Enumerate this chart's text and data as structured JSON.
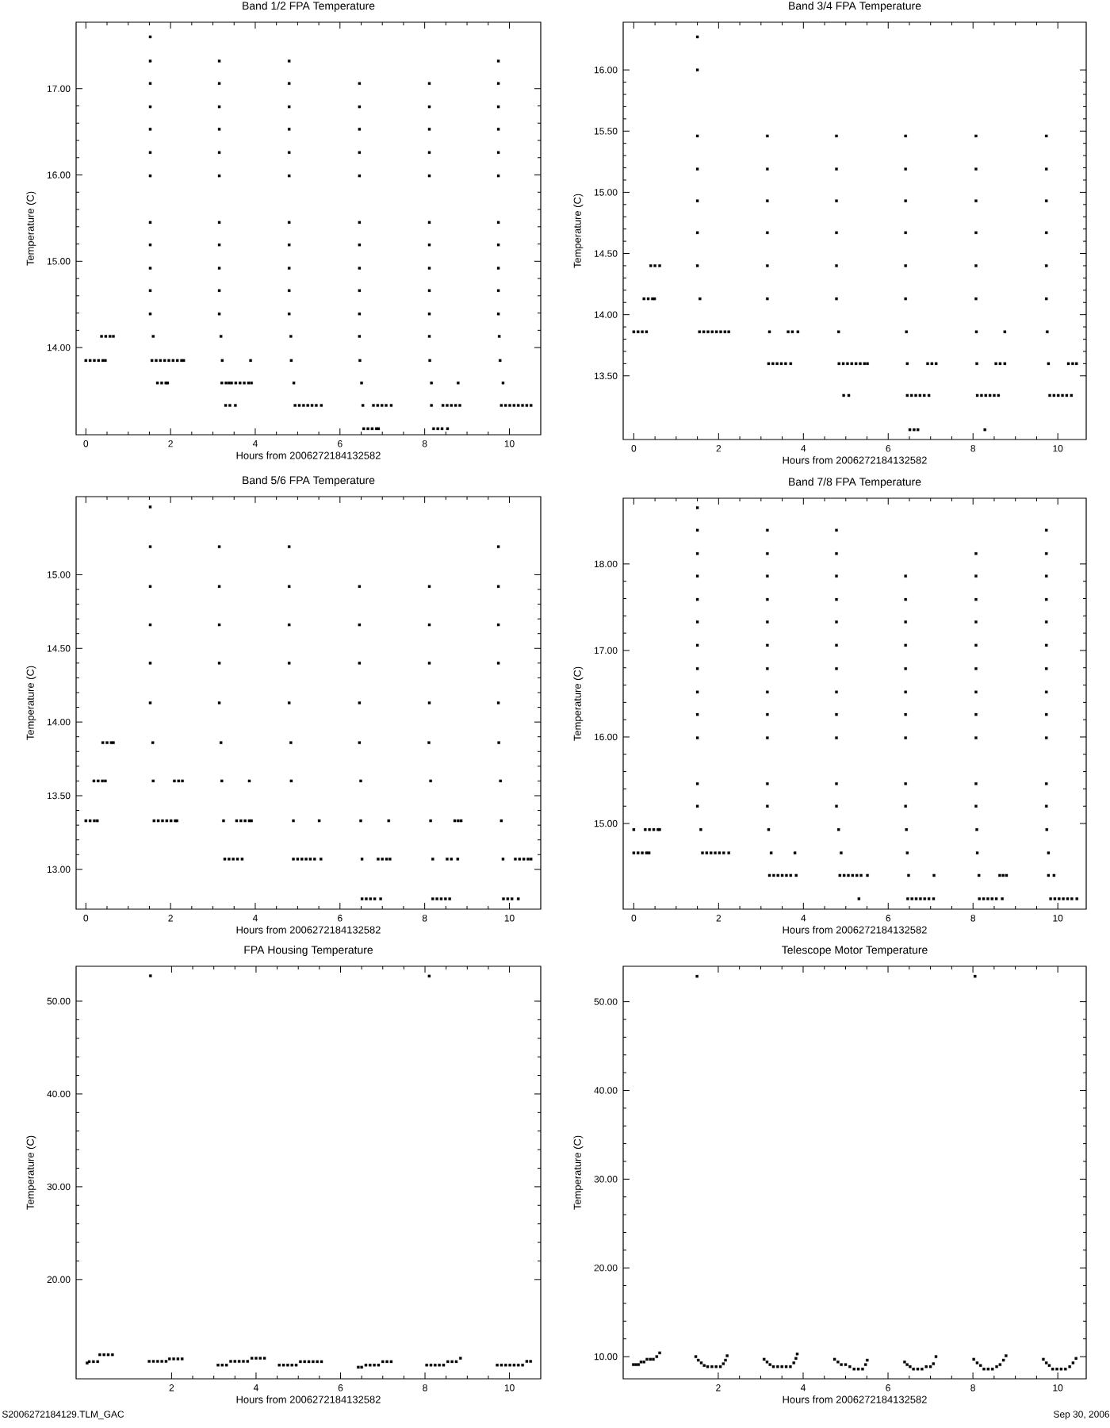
{
  "chart_data": [
    {
      "type": "scatter",
      "title": "Band 1/2 FPA Temperature",
      "xlabel": "Hours from 2006272184132582",
      "ylabel": "Temperature (C)",
      "marker": "square",
      "xlim": [
        -0.23,
        10.74
      ],
      "ylim": [
        12.99,
        17.77
      ],
      "xticks": [
        0,
        2,
        4,
        6,
        8,
        10
      ],
      "yticks": [
        {
          "value": 14,
          "label": "14.00"
        },
        {
          "value": 15,
          "label": "15.00"
        },
        {
          "value": 16,
          "label": "16.00"
        },
        {
          "value": 17,
          "label": "17.00"
        }
      ],
      "series": [
        {
          "color": "#000000",
          "x": [
            0,
            0.1,
            0.2,
            0.3,
            0.4,
            0.46,
            1.56,
            1.66,
            1.76,
            1.86,
            1.96,
            2.06,
            2.16,
            2.26,
            2.31,
            3.22,
            3.89,
            4.85,
            6.47,
            8.12,
            9.78
          ],
          "values": [
            13.85,
            13.85,
            13.85,
            13.85,
            13.85,
            13.85,
            13.85,
            13.85,
            13.85,
            13.85,
            13.85,
            13.85,
            13.85,
            13.85,
            13.85,
            13.85,
            13.85,
            13.85,
            13.85,
            13.85,
            13.85
          ]
        },
        {
          "color": "#000000",
          "x": [
            0.37,
            0.47,
            0.57,
            0.65,
            1.59,
            3.19,
            4.84,
            6.46,
            8.11,
            9.76
          ],
          "values": [
            14.13,
            14.13,
            14.13,
            14.13,
            14.13,
            14.13,
            14.13,
            14.13,
            14.13,
            14.13
          ]
        },
        {
          "color": "#000000",
          "x": [
            1.69,
            1.79,
            1.89,
            1.93,
            3.21,
            3.31,
            3.38,
            3.44,
            3.54,
            3.64,
            3.74,
            3.84,
            3.91,
            4.91,
            6.51,
            8.16,
            8.79,
            9.85
          ],
          "values": [
            13.59,
            13.59,
            13.59,
            13.59,
            13.59,
            13.59,
            13.59,
            13.59,
            13.59,
            13.59,
            13.59,
            13.59,
            13.59,
            13.59,
            13.59,
            13.59,
            13.59,
            13.59
          ]
        },
        {
          "color": "#000000",
          "x": [
            3.3,
            3.4,
            3.53,
            4.94,
            5.04,
            5.14,
            5.24,
            5.34,
            5.44,
            5.56,
            6.54,
            6.79,
            6.89,
            6.99,
            7.09,
            7.21,
            8.16,
            8.43,
            8.53,
            8.63,
            8.73,
            8.83,
            9.81,
            9.91,
            10.01,
            10.11,
            10.21,
            10.31,
            10.41,
            10.51
          ],
          "values": [
            13.33,
            13.33,
            13.33,
            13.33,
            13.33,
            13.33,
            13.33,
            13.33,
            13.33,
            13.33,
            13.33,
            13.33,
            13.33,
            13.33,
            13.33,
            13.33,
            13.33,
            13.33,
            13.33,
            13.33,
            13.33,
            13.33,
            13.33,
            13.33,
            13.33,
            13.33,
            13.33,
            13.33,
            13.33,
            13.33
          ]
        },
        {
          "color": "#000000",
          "x": [
            6.56,
            6.66,
            6.76,
            6.86,
            6.91,
            8.21,
            8.31,
            8.41,
            8.54
          ],
          "values": [
            13.06,
            13.06,
            13.06,
            13.06,
            13.06,
            13.06,
            13.06,
            13.06,
            13.06
          ]
        },
        {
          "color": "#000000",
          "x": [
            1.52,
            1.52,
            1.52,
            1.52,
            1.52,
            1.52,
            1.52,
            1.52,
            1.52,
            1.52,
            1.52,
            1.52
          ],
          "values": [
            14.39,
            14.66,
            14.92,
            15.19,
            15.45,
            15.99,
            16.26,
            16.53,
            16.79,
            17.06,
            17.32,
            17.6
          ]
        },
        {
          "color": "#000000",
          "x": [
            3.15,
            3.15,
            3.15,
            3.15,
            3.15,
            3.15,
            3.15,
            3.15,
            3.15,
            3.15,
            3.15
          ],
          "values": [
            14.39,
            14.66,
            14.92,
            15.19,
            15.45,
            15.99,
            16.26,
            16.53,
            16.79,
            17.06,
            17.32
          ]
        },
        {
          "color": "#000000",
          "x": [
            4.8,
            4.8,
            4.8,
            4.8,
            4.8,
            4.8,
            4.8,
            4.8,
            4.8,
            4.8,
            4.8
          ],
          "values": [
            14.39,
            14.66,
            14.92,
            15.19,
            15.45,
            15.99,
            16.26,
            16.53,
            16.79,
            17.06,
            17.32
          ]
        },
        {
          "color": "#000000",
          "x": [
            6.46,
            6.46,
            6.46,
            6.46,
            6.46,
            6.46,
            6.46,
            6.46,
            6.46,
            6.46
          ],
          "values": [
            14.39,
            14.66,
            14.92,
            15.19,
            15.45,
            15.99,
            16.26,
            16.53,
            16.79,
            17.06
          ]
        },
        {
          "color": "#000000",
          "x": [
            8.11,
            8.11,
            8.11,
            8.11,
            8.11,
            8.11,
            8.11,
            8.11,
            8.11,
            8.11
          ],
          "values": [
            14.39,
            14.66,
            14.92,
            15.19,
            15.45,
            15.99,
            16.26,
            16.53,
            16.79,
            17.06
          ]
        },
        {
          "color": "#000000",
          "x": [
            9.74,
            9.74,
            9.74,
            9.74,
            9.74,
            9.74,
            9.74,
            9.74,
            9.74,
            9.74,
            9.74
          ],
          "values": [
            14.39,
            14.66,
            14.92,
            15.19,
            15.45,
            15.99,
            16.26,
            16.53,
            16.79,
            17.06,
            17.32
          ]
        }
      ]
    },
    {
      "type": "scatter",
      "title": "Band 3/4 FPA Temperature",
      "xlabel": "Hours from 2006272184132582",
      "ylabel": "Temperature (C)",
      "marker": "square",
      "xlim": [
        -0.25,
        10.67
      ],
      "ylim": [
        12.98,
        16.39
      ],
      "xticks": [
        0,
        2,
        4,
        6,
        8,
        10
      ],
      "yticks": [
        {
          "value": 13.5,
          "label": "13.50"
        },
        {
          "value": 14,
          "label": "14.00"
        },
        {
          "value": 14.5,
          "label": "14.50"
        },
        {
          "value": 15,
          "label": "15.00"
        },
        {
          "value": 15.5,
          "label": "15.50"
        },
        {
          "value": 16,
          "label": "16.00"
        }
      ],
      "series": [
        {
          "color": "#000000",
          "x": [
            0,
            0.1,
            0.2,
            0.3,
            1.55,
            1.65,
            1.75,
            1.85,
            1.95,
            2.05,
            2.15,
            2.24,
            3.2,
            3.64,
            3.74,
            3.87,
            4.83,
            6.43,
            8.08,
            8.75,
            9.75
          ],
          "values": [
            13.86,
            13.86,
            13.86,
            13.86,
            13.86,
            13.86,
            13.86,
            13.86,
            13.86,
            13.86,
            13.86,
            13.86,
            13.86,
            13.86,
            13.86,
            13.86,
            13.86,
            13.86,
            13.86,
            13.86,
            13.86
          ]
        },
        {
          "color": "#000000",
          "x": [
            0.24,
            0.34,
            0.44,
            0.49,
            1.56,
            3.15,
            4.78,
            6.41,
            8.07,
            9.73
          ],
          "values": [
            14.13,
            14.13,
            14.13,
            14.13,
            14.13,
            14.13,
            14.13,
            14.13,
            14.13,
            14.13
          ]
        },
        {
          "color": "#000000",
          "x": [
            0.4,
            0.5,
            0.61,
            1.5,
            3.15,
            4.78,
            6.41,
            8.07,
            9.73
          ],
          "values": [
            14.4,
            14.4,
            14.4,
            14.4,
            14.4,
            14.4,
            14.4,
            14.4,
            14.4
          ]
        },
        {
          "color": "#000000",
          "x": [
            3.18,
            3.28,
            3.38,
            3.48,
            3.58,
            3.7,
            4.84,
            4.94,
            5.04,
            5.14,
            5.24,
            5.34,
            5.44,
            5.51,
            6.45,
            6.93,
            7.03,
            7.13,
            8.09,
            8.54,
            8.64,
            8.75,
            9.78,
            10.25,
            10.35,
            10.44
          ],
          "values": [
            13.6,
            13.6,
            13.6,
            13.6,
            13.6,
            13.6,
            13.6,
            13.6,
            13.6,
            13.6,
            13.6,
            13.6,
            13.6,
            13.6,
            13.6,
            13.6,
            13.6,
            13.6,
            13.6,
            13.6,
            13.6,
            13.6,
            13.6,
            13.6,
            13.6,
            13.6
          ]
        },
        {
          "color": "#000000",
          "x": [
            4.95,
            5.07,
            6.45,
            6.55,
            6.65,
            6.75,
            6.85,
            6.96,
            8.1,
            8.2,
            8.3,
            8.4,
            8.5,
            8.6,
            9.81,
            9.91,
            10.01,
            10.11,
            10.21,
            10.32
          ],
          "values": [
            13.34,
            13.34,
            13.34,
            13.34,
            13.34,
            13.34,
            13.34,
            13.34,
            13.34,
            13.34,
            13.34,
            13.34,
            13.34,
            13.34,
            13.34,
            13.34,
            13.34,
            13.34,
            13.34,
            13.34
          ]
        },
        {
          "color": "#000000",
          "x": [
            6.51,
            6.61,
            6.7,
            8.28
          ],
          "values": [
            13.06,
            13.06,
            13.06,
            13.06
          ]
        },
        {
          "color": "#000000",
          "x": [
            1.5,
            1.5,
            1.5,
            1.5,
            1.5,
            1.5
          ],
          "values": [
            14.67,
            14.93,
            15.19,
            15.46,
            16.0,
            16.27
          ]
        },
        {
          "color": "#000000",
          "x": [
            3.15,
            3.15,
            3.15,
            3.15
          ],
          "values": [
            14.67,
            14.93,
            15.19,
            15.46
          ]
        },
        {
          "color": "#000000",
          "x": [
            4.78,
            4.78,
            4.78,
            4.78
          ],
          "values": [
            14.67,
            14.93,
            15.19,
            15.46
          ]
        },
        {
          "color": "#000000",
          "x": [
            6.41,
            6.41,
            6.41,
            6.41
          ],
          "values": [
            14.67,
            14.93,
            15.19,
            15.46
          ]
        },
        {
          "color": "#000000",
          "x": [
            8.07,
            8.07,
            8.07,
            8.07
          ],
          "values": [
            14.67,
            14.93,
            15.19,
            15.46
          ]
        },
        {
          "color": "#000000",
          "x": [
            9.73,
            9.73,
            9.73,
            9.73
          ],
          "values": [
            14.67,
            14.93,
            15.19,
            15.46
          ]
        }
      ]
    },
    {
      "type": "scatter",
      "title": "Band 5/6 FPA Temperature",
      "xlabel": "Hours from 2006272184132582",
      "ylabel": "Temperature (C)",
      "marker": "square",
      "xlim": [
        -0.23,
        10.74
      ],
      "ylim": [
        12.73,
        15.53
      ],
      "xticks": [
        0,
        2,
        4,
        6,
        8,
        10
      ],
      "yticks": [
        {
          "value": 13,
          "label": "13.00"
        },
        {
          "value": 13.5,
          "label": "13.50"
        },
        {
          "value": 14,
          "label": "14.00"
        },
        {
          "value": 14.5,
          "label": "14.50"
        },
        {
          "value": 15,
          "label": "15.00"
        }
      ],
      "series": [
        {
          "color": "#000000",
          "x": [
            0,
            0.1,
            0.2,
            0.27,
            1.61,
            1.71,
            1.81,
            1.91,
            2.01,
            2.11,
            2.15,
            3.25,
            3.56,
            3.66,
            3.76,
            3.86,
            3.91,
            4.9,
            5.51,
            6.49,
            7.15,
            8.14,
            8.71,
            8.79,
            8.86,
            9.81
          ],
          "values": [
            13.33,
            13.33,
            13.33,
            13.33,
            13.33,
            13.33,
            13.33,
            13.33,
            13.33,
            13.33,
            13.33,
            13.33,
            13.33,
            13.33,
            13.33,
            13.33,
            13.33,
            13.33,
            13.33,
            13.33,
            13.33,
            13.33,
            13.33,
            13.33,
            13.33,
            13.33
          ]
        },
        {
          "color": "#000000",
          "x": [
            0.19,
            0.29,
            0.39,
            0.46,
            1.59,
            2.09,
            2.19,
            2.28,
            3.21,
            3.86,
            4.85,
            6.49,
            8.14,
            9.79
          ],
          "values": [
            13.6,
            13.6,
            13.6,
            13.6,
            13.6,
            13.6,
            13.6,
            13.6,
            13.6,
            13.6,
            13.6,
            13.6,
            13.6,
            13.6
          ]
        },
        {
          "color": "#000000",
          "x": [
            0.4,
            0.5,
            0.6,
            0.65,
            1.58,
            3.19,
            4.84,
            6.46,
            8.1,
            9.75
          ],
          "values": [
            13.86,
            13.86,
            13.86,
            13.86,
            13.86,
            13.86,
            13.86,
            13.86,
            13.86,
            13.86
          ]
        },
        {
          "color": "#000000",
          "x": [
            3.28,
            3.38,
            3.48,
            3.58,
            3.69,
            4.9,
            5.0,
            5.1,
            5.2,
            5.3,
            5.4,
            5.55,
            6.52,
            6.9,
            7.0,
            7.1,
            7.18,
            8.19,
            8.53,
            8.63,
            8.78,
            9.85,
            10.14,
            10.24,
            10.34,
            10.44,
            10.51
          ],
          "values": [
            13.07,
            13.07,
            13.07,
            13.07,
            13.07,
            13.07,
            13.07,
            13.07,
            13.07,
            13.07,
            13.07,
            13.07,
            13.07,
            13.07,
            13.07,
            13.07,
            13.07,
            13.07,
            13.07,
            13.07,
            13.07,
            13.07,
            13.07,
            13.07,
            13.07,
            13.07,
            13.07
          ]
        },
        {
          "color": "#000000",
          "x": [
            6.52,
            6.62,
            6.72,
            6.82,
            6.96,
            8.19,
            8.29,
            8.39,
            8.49,
            8.59,
            9.86,
            9.96,
            10.06,
            10.21
          ],
          "values": [
            12.8,
            12.8,
            12.8,
            12.8,
            12.8,
            12.8,
            12.8,
            12.8,
            12.8,
            12.8,
            12.8,
            12.8,
            12.8,
            12.8
          ]
        },
        {
          "color": "#000000",
          "x": [
            1.52,
            1.52,
            1.52,
            1.52,
            1.52,
            1.52
          ],
          "values": [
            14.13,
            14.4,
            14.66,
            14.92,
            15.19,
            15.46
          ]
        },
        {
          "color": "#000000",
          "x": [
            3.15,
            3.15,
            3.15,
            3.15,
            3.15
          ],
          "values": [
            14.13,
            14.4,
            14.66,
            14.92,
            15.19
          ]
        },
        {
          "color": "#000000",
          "x": [
            4.8,
            4.8,
            4.8,
            4.8,
            4.8
          ],
          "values": [
            14.13,
            14.4,
            14.66,
            14.92,
            15.19
          ]
        },
        {
          "color": "#000000",
          "x": [
            6.46,
            6.46,
            6.46,
            6.46
          ],
          "values": [
            14.13,
            14.4,
            14.66,
            14.92
          ]
        },
        {
          "color": "#000000",
          "x": [
            8.11,
            8.11,
            8.11,
            8.11
          ],
          "values": [
            14.13,
            14.4,
            14.66,
            14.92
          ]
        },
        {
          "color": "#000000",
          "x": [
            9.74,
            9.74,
            9.74,
            9.74,
            9.74
          ],
          "values": [
            14.13,
            14.4,
            14.66,
            14.92,
            15.19
          ]
        }
      ]
    },
    {
      "type": "scatter",
      "title": "Band 7/8 FPA Temperature",
      "xlabel": "Hours from 2006272184132582",
      "ylabel": "Temperature (C)",
      "marker": "square",
      "xlim": [
        -0.25,
        10.67
      ],
      "ylim": [
        14.01,
        18.76
      ],
      "xticks": [
        0,
        2,
        4,
        6,
        8,
        10
      ],
      "yticks": [
        {
          "value": 15,
          "label": "15.00"
        },
        {
          "value": 16,
          "label": "16.00"
        },
        {
          "value": 17,
          "label": "17.00"
        },
        {
          "value": 18,
          "label": "18.00"
        }
      ],
      "series": [
        {
          "color": "#000000",
          "x": [
            0,
            0.27,
            0.37,
            0.47,
            0.57,
            0.61,
            1.58,
            3.18,
            4.83,
            6.43,
            8.09,
            9.74
          ],
          "values": [
            14.93,
            14.93,
            14.93,
            14.93,
            14.93,
            14.93,
            14.93,
            14.93,
            14.93,
            14.93,
            14.93,
            14.93
          ]
        },
        {
          "color": "#000000",
          "x": [
            0,
            0.1,
            0.2,
            0.3,
            0.36,
            1.62,
            1.72,
            1.82,
            1.92,
            2.02,
            2.12,
            2.24,
            3.24,
            3.8,
            4.89,
            6.45,
            8.1,
            9.78
          ],
          "values": [
            14.66,
            14.66,
            14.66,
            14.66,
            14.66,
            14.66,
            14.66,
            14.66,
            14.66,
            14.66,
            14.66,
            14.66,
            14.66,
            14.66,
            14.66,
            14.66,
            14.66,
            14.66
          ]
        },
        {
          "color": "#000000",
          "x": [
            3.2,
            3.3,
            3.4,
            3.5,
            3.6,
            3.7,
            3.83,
            4.86,
            4.96,
            5.06,
            5.16,
            5.26,
            5.36,
            5.51,
            6.48,
            7.08,
            8.14,
            8.63,
            8.71,
            8.79,
            9.78,
            9.91
          ],
          "values": [
            14.4,
            14.4,
            14.4,
            14.4,
            14.4,
            14.4,
            14.4,
            14.4,
            14.4,
            14.4,
            14.4,
            14.4,
            14.4,
            14.4,
            14.4,
            14.4,
            14.4,
            14.4,
            14.4,
            14.4,
            14.4,
            14.4
          ]
        },
        {
          "color": "#000000",
          "x": [
            5.31,
            6.46,
            6.56,
            6.66,
            6.76,
            6.86,
            6.96,
            7.07,
            8.15,
            8.25,
            8.35,
            8.45,
            8.55,
            8.69,
            9.83,
            9.93,
            10.03,
            10.13,
            10.23,
            10.33,
            10.45
          ],
          "values": [
            14.13,
            14.13,
            14.13,
            14.13,
            14.13,
            14.13,
            14.13,
            14.13,
            14.13,
            14.13,
            14.13,
            14.13,
            14.13,
            14.13,
            14.13,
            14.13,
            14.13,
            14.13,
            14.13,
            14.13,
            14.13
          ]
        },
        {
          "color": "#000000",
          "x": [
            1.5,
            1.5,
            1.5,
            1.5,
            1.5,
            1.5,
            1.5,
            1.5,
            1.5,
            1.5,
            1.5,
            1.5,
            1.5
          ],
          "values": [
            15.2,
            15.46,
            15.99,
            16.26,
            16.52,
            16.79,
            17.06,
            17.33,
            17.59,
            17.86,
            18.12,
            18.39,
            18.65
          ]
        },
        {
          "color": "#000000",
          "x": [
            3.15,
            3.15,
            3.15,
            3.15,
            3.15,
            3.15,
            3.15,
            3.15,
            3.15,
            3.15,
            3.15,
            3.15
          ],
          "values": [
            15.2,
            15.46,
            15.99,
            16.26,
            16.52,
            16.79,
            17.06,
            17.33,
            17.59,
            17.86,
            18.12,
            18.39
          ]
        },
        {
          "color": "#000000",
          "x": [
            4.78,
            4.78,
            4.78,
            4.78,
            4.78,
            4.78,
            4.78,
            4.78,
            4.78,
            4.78,
            4.78,
            4.78
          ],
          "values": [
            15.2,
            15.46,
            15.99,
            16.26,
            16.52,
            16.79,
            17.06,
            17.33,
            17.59,
            17.86,
            18.12,
            18.39
          ]
        },
        {
          "color": "#000000",
          "x": [
            6.41,
            6.41,
            6.41,
            6.41,
            6.41,
            6.41,
            6.41,
            6.41,
            6.41,
            6.41
          ],
          "values": [
            15.2,
            15.46,
            15.99,
            16.26,
            16.52,
            16.79,
            17.06,
            17.33,
            17.59,
            17.86
          ]
        },
        {
          "color": "#000000",
          "x": [
            8.07,
            8.07,
            8.07,
            8.07,
            8.07,
            8.07,
            8.07,
            8.07,
            8.07,
            8.07,
            8.07
          ],
          "values": [
            15.2,
            15.46,
            15.99,
            16.26,
            16.52,
            16.79,
            17.06,
            17.33,
            17.59,
            17.86,
            18.12
          ]
        },
        {
          "color": "#000000",
          "x": [
            9.73,
            9.73,
            9.73,
            9.73,
            9.73,
            9.73,
            9.73,
            9.73,
            9.73,
            9.73,
            9.73,
            9.73
          ],
          "values": [
            15.2,
            15.46,
            15.99,
            16.26,
            16.52,
            16.79,
            17.06,
            17.33,
            17.59,
            17.86,
            18.12,
            18.39
          ]
        }
      ]
    },
    {
      "type": "scatter",
      "title": "FPA Housing Temperature",
      "xlabel": "Hours from 2006272184132582",
      "ylabel": "Temperature (C)",
      "marker": "square",
      "xlim": [
        -0.26,
        10.74
      ],
      "ylim": [
        9.3,
        53.76
      ],
      "xticks": [
        2,
        4,
        6,
        8,
        10
      ],
      "yticks": [
        {
          "value": 20,
          "label": "20.00"
        },
        {
          "value": 30,
          "label": "30.00"
        },
        {
          "value": 40,
          "label": "40.00"
        },
        {
          "value": 50,
          "label": "50.00"
        }
      ],
      "annotations": [
        "S2006272184129.TLM_GAC"
      ],
      "series": [
        {
          "color": "#000000",
          "x": [
            0,
            0.05,
            0.15,
            0.25,
            0.3,
            0.4,
            0.5,
            0.6,
            1.47,
            1.57,
            1.67,
            1.77,
            1.87,
            1.95,
            2.05,
            2.15,
            2.25,
            3.1,
            3.2,
            3.3,
            3.4,
            3.5,
            3.6,
            3.7,
            3.8,
            3.9,
            4.0,
            4.1,
            4.2,
            4.55,
            4.65,
            4.75,
            4.85,
            4.95,
            5.05,
            5.15,
            5.25,
            5.35,
            5.45,
            5.55,
            6.42,
            6.5,
            6.6,
            6.7,
            6.8,
            6.9,
            7.0,
            7.1,
            7.2,
            8.04,
            8.14,
            8.24,
            8.34,
            8.44,
            8.54,
            8.64,
            8.74,
            8.84,
            9.71,
            9.81,
            9.91,
            10.01,
            10.11,
            10.21,
            10.31,
            10.41,
            10.5,
            1.5,
            8.1
          ],
          "values": [
            11.0,
            11.15,
            11.15,
            11.15,
            11.9,
            11.9,
            11.9,
            11.9,
            11.18,
            11.18,
            11.18,
            11.18,
            11.18,
            11.45,
            11.45,
            11.45,
            11.45,
            10.78,
            10.78,
            10.78,
            11.18,
            11.18,
            11.18,
            11.18,
            11.18,
            11.52,
            11.52,
            11.52,
            11.52,
            10.78,
            10.78,
            10.78,
            10.78,
            10.78,
            11.15,
            11.15,
            11.15,
            11.15,
            11.15,
            11.15,
            10.55,
            10.55,
            10.78,
            10.78,
            10.78,
            10.78,
            11.15,
            11.15,
            11.15,
            10.78,
            10.78,
            10.78,
            10.78,
            10.78,
            11.15,
            11.15,
            11.15,
            11.52,
            10.78,
            10.78,
            10.78,
            10.78,
            10.78,
            10.78,
            10.78,
            11.18,
            11.18,
            52.73,
            52.7
          ]
        }
      ]
    },
    {
      "type": "scatter",
      "title": "Telescope Motor Temperature",
      "xlabel": "Hours from 2006272184132582",
      "ylabel": "Temperature (C)",
      "marker": "square",
      "xlim": [
        -0.24,
        10.67
      ],
      "ylim": [
        7.5,
        53.99
      ],
      "xticks": [
        2,
        4,
        6,
        8,
        10
      ],
      "yticks": [
        {
          "value": 10,
          "label": "10.00"
        },
        {
          "value": 20,
          "label": "20.00"
        },
        {
          "value": 30,
          "label": "30.00"
        },
        {
          "value": 40,
          "label": "40.00"
        },
        {
          "value": 50,
          "label": "50.00"
        }
      ],
      "annotations": [
        "Sep 30, 2006"
      ],
      "series": [
        {
          "color": "#000000",
          "x": [
            0,
            0.06,
            0.12,
            0.18,
            0.25,
            0.32,
            0.4,
            0.47,
            0.55,
            0.62,
            1.47,
            1.53,
            1.6,
            1.67,
            1.75,
            1.85,
            1.95,
            2.05,
            2.12,
            2.17,
            2.21,
            3.08,
            3.15,
            3.22,
            3.3,
            3.4,
            3.5,
            3.6,
            3.7,
            3.78,
            3.83,
            3.86,
            4.74,
            4.82,
            4.9,
            5.0,
            5.1,
            5.2,
            5.3,
            5.4,
            5.47,
            5.51,
            6.39,
            6.45,
            6.52,
            6.6,
            6.7,
            6.8,
            6.9,
            7.0,
            7.07,
            7.13,
            8.02,
            8.1,
            8.18,
            8.26,
            8.36,
            8.46,
            8.56,
            8.64,
            8.72,
            8.78,
            9.66,
            9.73,
            9.8,
            9.88,
            9.98,
            10.08,
            10.18,
            10.28,
            10.36,
            10.43,
            1.5,
            8.05
          ],
          "values": [
            9.1,
            9.1,
            9.1,
            9.4,
            9.4,
            9.7,
            9.7,
            9.7,
            10.0,
            10.42,
            10.0,
            9.6,
            9.3,
            9.0,
            8.87,
            8.87,
            8.87,
            8.87,
            9.2,
            9.6,
            10.1,
            9.7,
            9.4,
            9.1,
            8.87,
            8.87,
            8.87,
            8.87,
            8.87,
            9.3,
            9.8,
            10.3,
            9.7,
            9.4,
            9.1,
            9.1,
            8.87,
            8.6,
            8.6,
            8.6,
            9.1,
            9.6,
            9.4,
            9.1,
            8.87,
            8.6,
            8.6,
            8.6,
            8.87,
            8.87,
            9.2,
            10.0,
            9.7,
            9.3,
            9.0,
            8.6,
            8.6,
            8.6,
            8.87,
            9.1,
            9.6,
            10.1,
            9.7,
            9.3,
            9.0,
            8.6,
            8.6,
            8.6,
            8.6,
            8.87,
            9.3,
            9.8,
            52.86,
            52.86
          ]
        }
      ]
    }
  ]
}
